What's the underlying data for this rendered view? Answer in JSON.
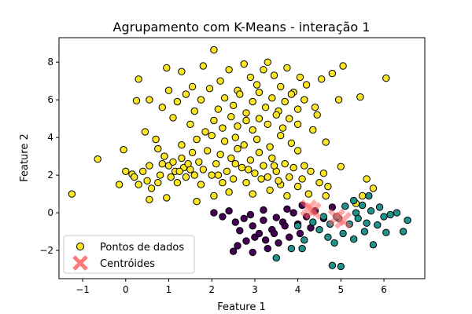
{
  "chart_data": {
    "type": "scatter",
    "title": "Agrupamento com K-Means - interação 1",
    "xlabel": "Feature 1",
    "ylabel": "Feature 2",
    "xlim": [
      -1.55,
      6.95
    ],
    "ylim": [
      -3.5,
      9.3
    ],
    "xticks": [
      -1,
      0,
      1,
      2,
      3,
      4,
      5,
      6
    ],
    "yticks": [
      -2,
      0,
      2,
      4,
      6,
      8
    ],
    "legend_position": "lower-left",
    "legend": [
      {
        "label": "Pontos de dados",
        "marker": "circle",
        "color": "#fde725"
      },
      {
        "label": "Centróides",
        "marker": "x",
        "color": "#ff6464"
      }
    ],
    "colors": {
      "cluster_yellow": "#fde725",
      "cluster_purple": "#440154",
      "cluster_teal": "#21918c",
      "centroid": "#ff6464",
      "edge": "#000000"
    },
    "series": [
      {
        "cluster": "yellow",
        "points": [
          [
            -1.25,
            1.0
          ],
          [
            -0.65,
            2.85
          ],
          [
            -0.15,
            1.5
          ],
          [
            0.0,
            2.2
          ],
          [
            0.15,
            2.05
          ],
          [
            0.3,
            1.5
          ],
          [
            0.4,
            2.2
          ],
          [
            0.5,
            1.7
          ],
          [
            0.6,
            1.3
          ],
          [
            0.75,
            1.6
          ],
          [
            0.8,
            2.0
          ],
          [
            0.85,
            2.6
          ],
          [
            0.9,
            3.0
          ],
          [
            1.0,
            2.5
          ],
          [
            1.05,
            1.9
          ],
          [
            1.1,
            2.7
          ],
          [
            1.15,
            2.2
          ],
          [
            1.2,
            1.6
          ],
          [
            1.3,
            2.9
          ],
          [
            1.35,
            2.4
          ],
          [
            1.4,
            1.9
          ],
          [
            1.5,
            2.3
          ],
          [
            1.55,
            3.2
          ],
          [
            1.6,
            2.0
          ],
          [
            1.7,
            2.7
          ],
          [
            1.75,
            1.5
          ],
          [
            1.8,
            2.3
          ],
          [
            1.9,
            3.3
          ],
          [
            2.0,
            2.0
          ],
          [
            2.1,
            2.6
          ],
          [
            2.2,
            3.1
          ],
          [
            2.25,
            1.6
          ],
          [
            2.35,
            2.2
          ],
          [
            2.45,
            2.9
          ],
          [
            2.5,
            1.8
          ],
          [
            2.6,
            3.4
          ],
          [
            2.7,
            2.4
          ],
          [
            2.8,
            1.6
          ],
          [
            2.9,
            2.8
          ],
          [
            3.0,
            2.1
          ],
          [
            3.1,
            3.2
          ],
          [
            3.2,
            2.5
          ],
          [
            3.3,
            1.9
          ],
          [
            3.4,
            2.9
          ],
          [
            3.5,
            2.2
          ],
          [
            3.6,
            1.5
          ],
          [
            3.7,
            2.6
          ],
          [
            3.8,
            1.9
          ],
          [
            3.9,
            2.4
          ],
          [
            4.0,
            1.4
          ],
          [
            4.1,
            1.8
          ],
          [
            4.3,
            2.2
          ],
          [
            4.5,
            1.6
          ],
          [
            4.6,
            2.1
          ],
          [
            4.7,
            1.4
          ],
          [
            5.0,
            2.45
          ],
          [
            5.5,
            0.9
          ],
          [
            5.6,
            1.8
          ],
          [
            0.55,
            0.7
          ],
          [
            0.95,
            0.8
          ],
          [
            1.65,
            0.6
          ],
          [
            2.05,
            0.9
          ],
          [
            2.4,
            1.1
          ],
          [
            2.95,
            1.0
          ],
          [
            3.35,
            1.2
          ],
          [
            3.75,
            0.9
          ],
          [
            4.25,
            1.0
          ],
          [
            0.95,
            7.7
          ],
          [
            1.3,
            7.5
          ],
          [
            1.55,
            6.7
          ],
          [
            1.8,
            7.8
          ],
          [
            2.05,
            8.65
          ],
          [
            2.2,
            7.0
          ],
          [
            2.4,
            7.6
          ],
          [
            2.6,
            6.5
          ],
          [
            2.75,
            7.9
          ],
          [
            2.9,
            7.2
          ],
          [
            3.05,
            6.8
          ],
          [
            3.2,
            7.6
          ],
          [
            3.3,
            8.0
          ],
          [
            3.45,
            7.3
          ],
          [
            3.6,
            6.7
          ],
          [
            3.75,
            7.7
          ],
          [
            3.9,
            6.4
          ],
          [
            4.05,
            7.2
          ],
          [
            4.2,
            6.8
          ],
          [
            4.55,
            7.1
          ],
          [
            4.8,
            7.4
          ],
          [
            5.05,
            7.8
          ],
          [
            6.05,
            7.15
          ],
          [
            0.3,
            7.1
          ],
          [
            0.55,
            6.0
          ],
          [
            0.85,
            5.6
          ],
          [
            1.0,
            6.5
          ],
          [
            1.2,
            5.9
          ],
          [
            1.4,
            6.3
          ],
          [
            1.6,
            5.4
          ],
          [
            1.75,
            6.0
          ],
          [
            1.95,
            6.6
          ],
          [
            2.15,
            5.5
          ],
          [
            2.3,
            6.1
          ],
          [
            2.5,
            5.7
          ],
          [
            2.65,
            6.3
          ],
          [
            2.8,
            5.3
          ],
          [
            2.95,
            5.9
          ],
          [
            3.1,
            6.4
          ],
          [
            3.25,
            5.6
          ],
          [
            3.4,
            6.1
          ],
          [
            3.55,
            5.4
          ],
          [
            3.7,
            5.9
          ],
          [
            3.85,
            6.3
          ],
          [
            4.0,
            5.5
          ],
          [
            4.15,
            6.0
          ],
          [
            4.4,
            5.6
          ],
          [
            4.95,
            6.0
          ],
          [
            5.45,
            6.15
          ],
          [
            0.25,
            5.95
          ],
          [
            1.1,
            5.05
          ],
          [
            1.5,
            4.7
          ],
          [
            1.85,
            4.3
          ],
          [
            2.05,
            4.9
          ],
          [
            2.25,
            4.5
          ],
          [
            2.45,
            5.1
          ],
          [
            2.6,
            4.6
          ],
          [
            2.8,
            4.9
          ],
          [
            2.95,
            4.4
          ],
          [
            3.1,
            5.0
          ],
          [
            3.3,
            4.7
          ],
          [
            3.5,
            5.2
          ],
          [
            3.65,
            4.5
          ],
          [
            3.8,
            5.0
          ],
          [
            4.0,
            4.7
          ],
          [
            4.35,
            4.4
          ],
          [
            4.45,
            5.2
          ],
          [
            0.7,
            3.9
          ],
          [
            0.75,
            3.4
          ],
          [
            1.3,
            3.6
          ],
          [
            1.65,
            3.9
          ],
          [
            2.0,
            4.1
          ],
          [
            2.3,
            3.8
          ],
          [
            2.55,
            4.0
          ],
          [
            2.75,
            3.6
          ],
          [
            3.05,
            3.9
          ],
          [
            3.35,
            3.5
          ],
          [
            3.6,
            4.1
          ],
          [
            3.85,
            3.7
          ],
          [
            4.0,
            3.3
          ],
          [
            -0.05,
            3.35
          ],
          [
            0.45,
            4.3
          ],
          [
            4.65,
            3.75
          ],
          [
            0.2,
            1.9
          ],
          [
            0.55,
            2.5
          ],
          [
            1.25,
            2.2
          ],
          [
            1.45,
            2.6
          ],
          [
            2.15,
            2.0
          ],
          [
            2.55,
            2.6
          ],
          [
            2.85,
            2.3
          ],
          [
            3.15,
            1.8
          ],
          [
            3.45,
            2.5
          ],
          [
            3.55,
            1.7
          ],
          [
            4.15,
            2.5
          ],
          [
            4.65,
            0.9
          ],
          [
            5.35,
            0.5
          ],
          [
            5.75,
            1.3
          ]
        ]
      },
      {
        "cluster": "purple",
        "points": [
          [
            2.05,
            0.0
          ],
          [
            2.25,
            -0.2
          ],
          [
            2.4,
            0.1
          ],
          [
            2.55,
            -0.5
          ],
          [
            2.65,
            -0.95
          ],
          [
            2.75,
            -0.3
          ],
          [
            2.8,
            -1.5
          ],
          [
            2.95,
            -0.7
          ],
          [
            3.0,
            -1.3
          ],
          [
            3.1,
            -1.1
          ],
          [
            3.2,
            -0.4
          ],
          [
            3.3,
            -1.9
          ],
          [
            3.4,
            -0.9
          ],
          [
            3.5,
            -0.25
          ],
          [
            3.55,
            -1.6
          ],
          [
            3.65,
            -0.5
          ],
          [
            3.75,
            0.2
          ],
          [
            3.8,
            -1.3
          ],
          [
            3.9,
            0.0
          ],
          [
            4.0,
            -0.6
          ],
          [
            4.05,
            -1.1
          ],
          [
            4.1,
            0.4
          ],
          [
            4.2,
            -0.2
          ],
          [
            4.3,
            -0.8
          ],
          [
            4.4,
            0.1
          ],
          [
            4.6,
            -0.3
          ],
          [
            4.8,
            0.3
          ],
          [
            2.5,
            -2.05
          ],
          [
            2.6,
            -1.75
          ],
          [
            2.95,
            -2.1
          ],
          [
            3.25,
            -1.45
          ],
          [
            3.45,
            -1.1
          ],
          [
            3.7,
            -0.7
          ],
          [
            3.2,
            0.15
          ],
          [
            2.9,
            -0.1
          ]
        ]
      },
      {
        "cluster": "teal",
        "points": [
          [
            3.5,
            -2.4
          ],
          [
            3.85,
            -1.9
          ],
          [
            4.0,
            -0.7
          ],
          [
            4.1,
            -1.9
          ],
          [
            4.15,
            -1.45
          ],
          [
            4.35,
            -0.5
          ],
          [
            4.5,
            -0.9
          ],
          [
            4.6,
            -0.2
          ],
          [
            4.7,
            -1.3
          ],
          [
            4.75,
            -0.6
          ],
          [
            4.8,
            -2.8
          ],
          [
            4.85,
            -1.6
          ],
          [
            4.95,
            -0.3
          ],
          [
            5.0,
            -2.85
          ],
          [
            5.05,
            -1.1
          ],
          [
            5.1,
            0.35
          ],
          [
            5.2,
            -0.6
          ],
          [
            5.3,
            -1.4
          ],
          [
            5.35,
            0.0
          ],
          [
            5.4,
            -0.3
          ],
          [
            5.5,
            0.4
          ],
          [
            5.55,
            -1.0
          ],
          [
            5.6,
            -0.55
          ],
          [
            5.65,
            0.9
          ],
          [
            5.7,
            0.1
          ],
          [
            5.75,
            -1.7
          ],
          [
            5.85,
            -0.65
          ],
          [
            5.9,
            0.3
          ],
          [
            6.0,
            -0.2
          ],
          [
            6.05,
            -1.05
          ],
          [
            6.15,
            -0.1
          ],
          [
            6.3,
            0.0
          ],
          [
            6.45,
            -1.0
          ],
          [
            6.55,
            -0.4
          ],
          [
            5.3,
            0.65
          ],
          [
            4.9,
            -0.2
          ]
        ]
      }
    ],
    "centroids": [
      [
        4.25,
        0.25
      ],
      [
        4.35,
        0.1
      ],
      [
        4.9,
        -0.25
      ],
      [
        5.05,
        -0.4
      ]
    ]
  }
}
